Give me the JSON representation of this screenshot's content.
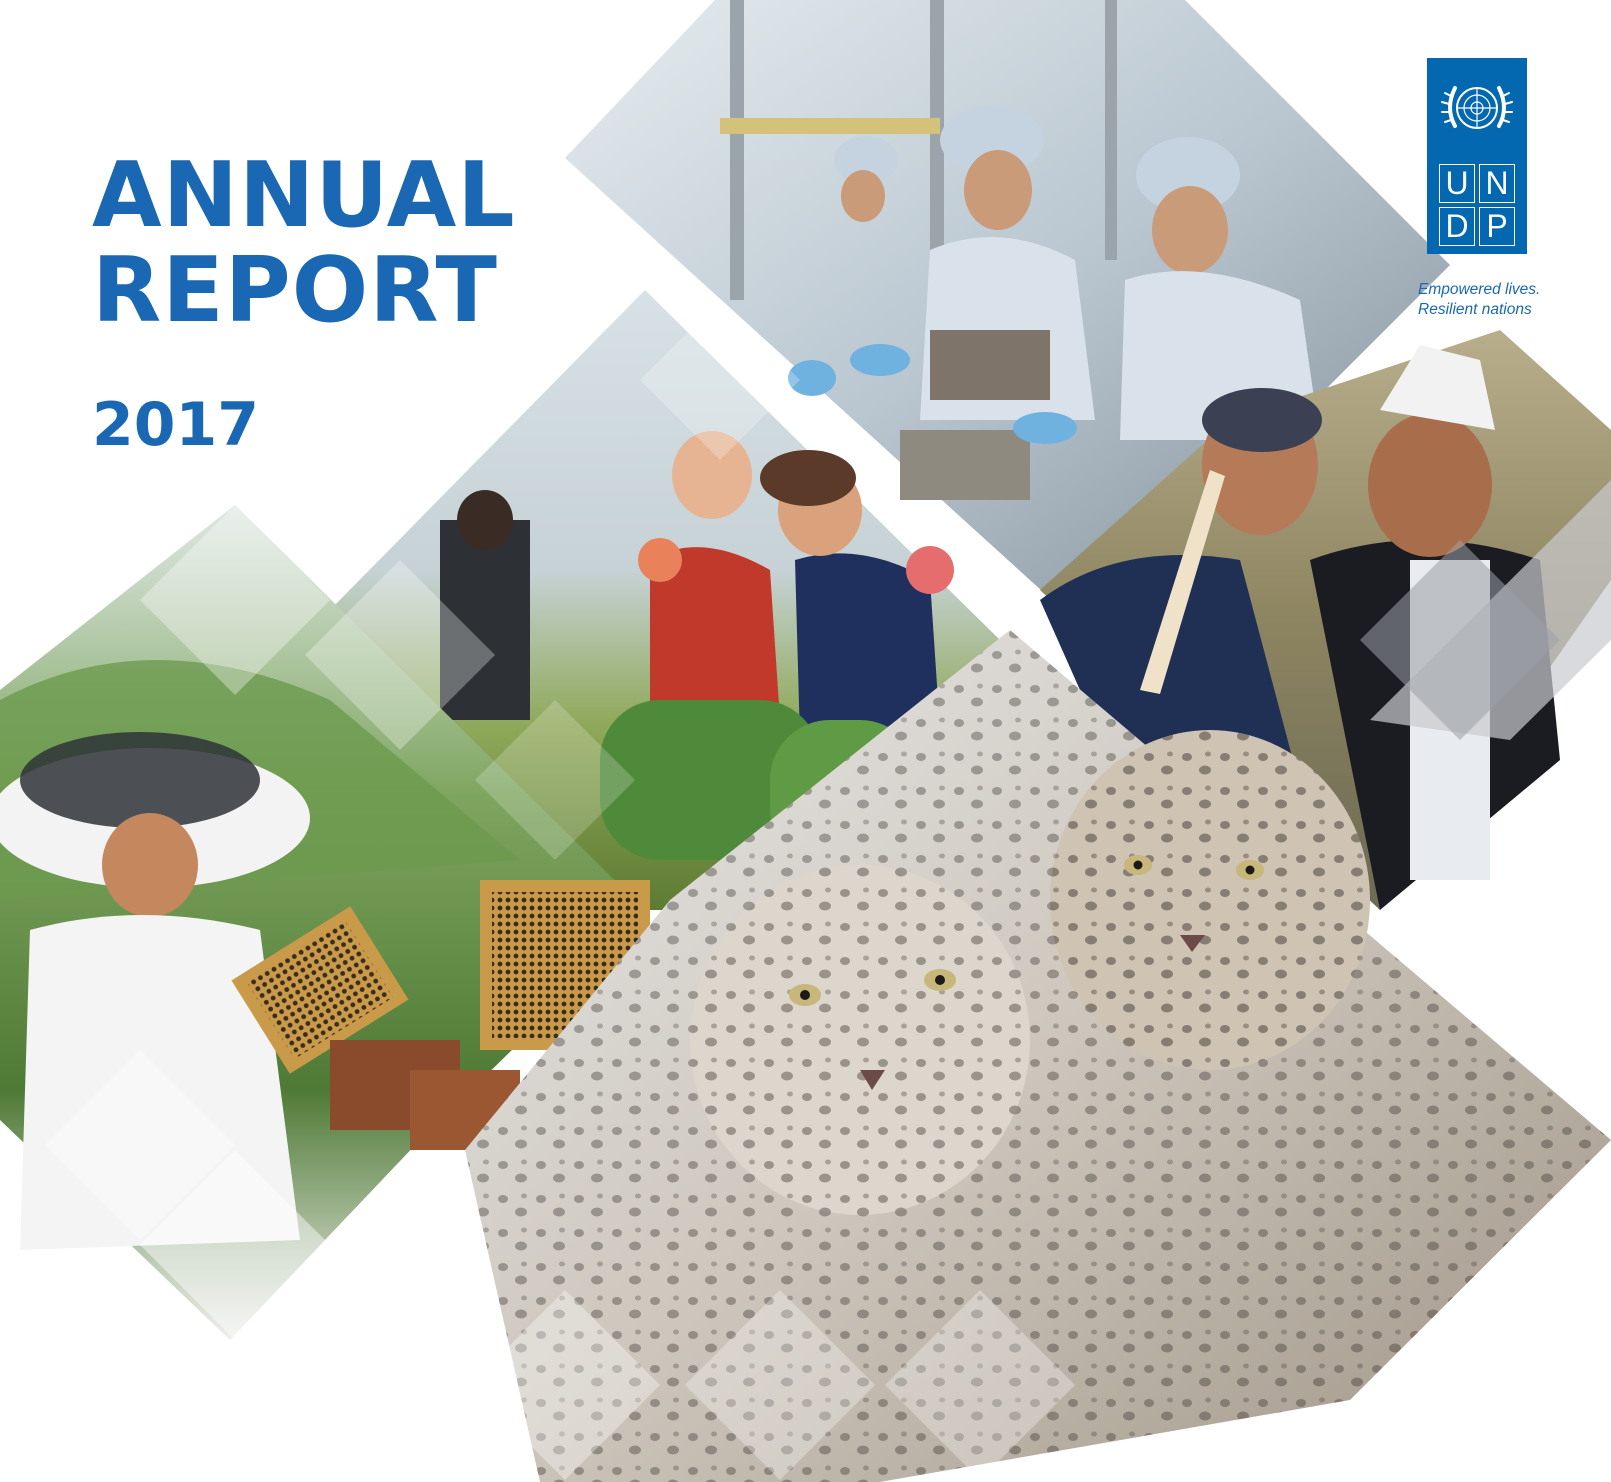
{
  "cover": {
    "title_line1": "ANNUAL",
    "title_line2": "REPORT",
    "year": "2017"
  },
  "logo": {
    "letters": [
      "U",
      "N",
      "D",
      "P"
    ],
    "tagline_line1": "Empowered lives.",
    "tagline_line2": "Resilient nations",
    "color": "#0468b1",
    "emblem_icon": "un-emblem-icon"
  },
  "colors": {
    "title": "#1a68b3",
    "logo_blue": "#0468b1"
  },
  "photos": [
    {
      "subject": "factory-workers-photo"
    },
    {
      "subject": "children-on-tyres-photo"
    },
    {
      "subject": "elderly-men-photo"
    },
    {
      "subject": "beekeeper-photo"
    },
    {
      "subject": "snow-leopards-photo"
    }
  ]
}
